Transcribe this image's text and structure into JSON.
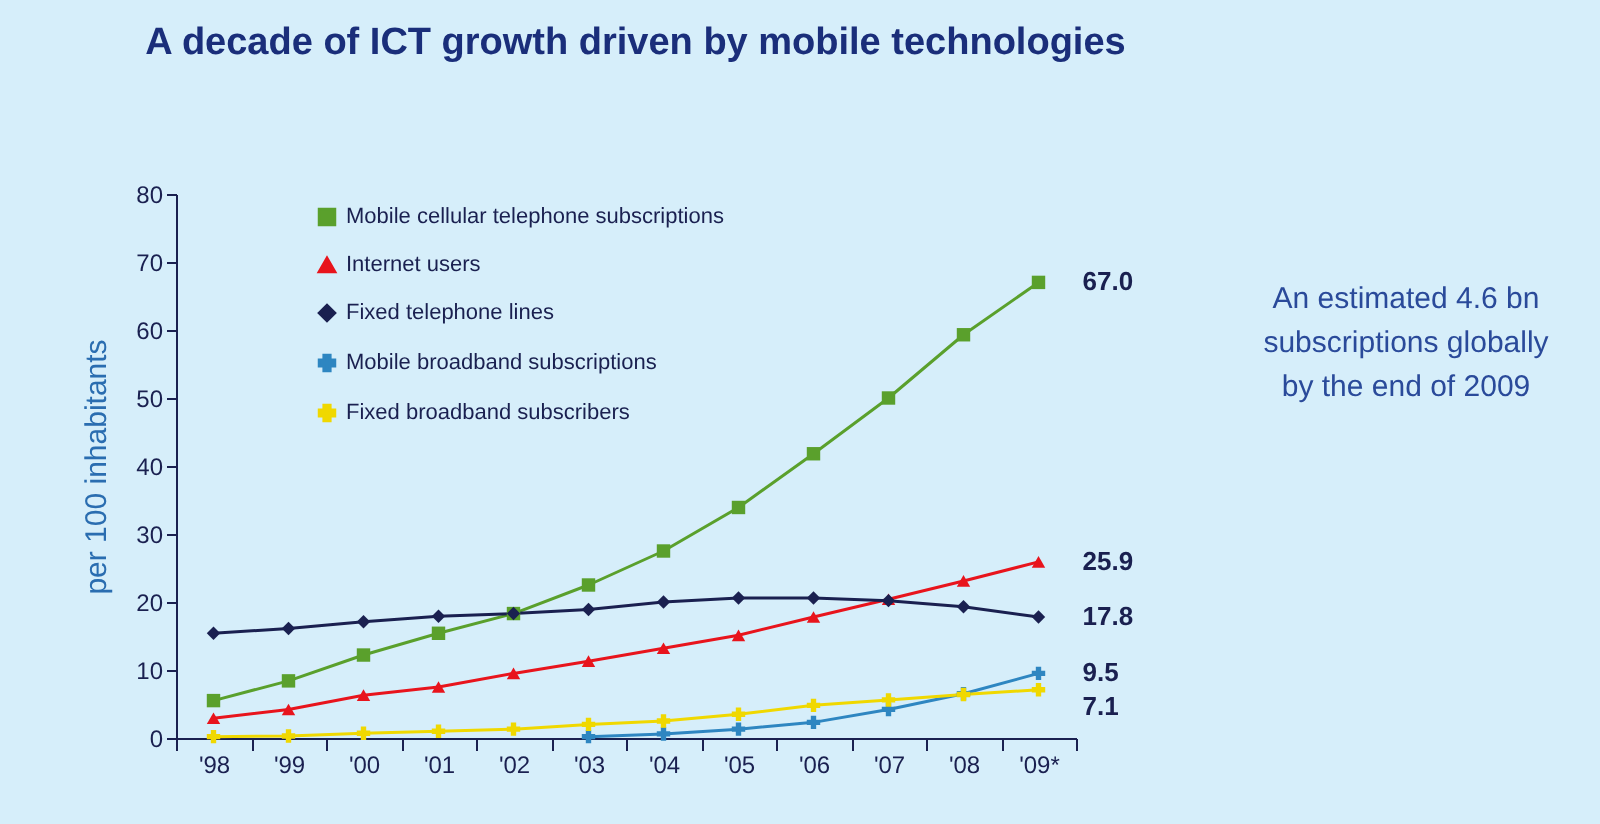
{
  "chart_data": {
    "type": "line",
    "title": "A decade of ICT growth driven by mobile technologies",
    "ylabel": "per 100 inhabitants",
    "categories": [
      "'98",
      "'99",
      "'00",
      "'01",
      "'02",
      "'03",
      "'04",
      "'05",
      "'06",
      "'07",
      "'08",
      "'09*"
    ],
    "ylim": [
      0,
      80
    ],
    "yticks": [
      0,
      10,
      20,
      30,
      40,
      50,
      60,
      70,
      80
    ],
    "grid": false,
    "legend": "top left",
    "series": [
      {
        "name": "Mobile cellular telephone subscriptions",
        "color": "#5aa02c",
        "marker": "square",
        "values": [
          5.5,
          8.4,
          12.2,
          15.4,
          18.3,
          22.5,
          27.5,
          33.9,
          41.8,
          50.0,
          59.3,
          67.0
        ],
        "value_labels": [
          null,
          null,
          null,
          null,
          null,
          null,
          null,
          null,
          null,
          null,
          null,
          "67.0"
        ]
      },
      {
        "name": "Internet users",
        "color": "#e8141c",
        "marker": "triangle",
        "values": [
          2.9,
          4.2,
          6.3,
          7.5,
          9.5,
          11.3,
          13.2,
          15.1,
          17.8,
          20.4,
          23.1,
          25.9
        ],
        "value_labels": [
          null,
          null,
          null,
          null,
          null,
          null,
          null,
          null,
          null,
          null,
          null,
          "25.9"
        ]
      },
      {
        "name": "Fixed telephone lines",
        "color": "#1a2050",
        "marker": "diamond",
        "values": [
          15.4,
          16.1,
          17.1,
          17.9,
          18.3,
          18.9,
          20.0,
          20.6,
          20.6,
          20.2,
          19.3,
          17.8
        ],
        "value_labels": [
          null,
          null,
          null,
          null,
          null,
          null,
          null,
          null,
          null,
          null,
          null,
          "17.8"
        ]
      },
      {
        "name": "Mobile broadband subscriptions",
        "color": "#2e86c1",
        "marker": "cross",
        "values": [
          null,
          null,
          null,
          null,
          null,
          0.2,
          0.6,
          1.3,
          2.3,
          4.2,
          6.5,
          9.5
        ],
        "value_labels": [
          null,
          null,
          null,
          null,
          null,
          null,
          null,
          null,
          null,
          null,
          null,
          "9.5"
        ]
      },
      {
        "name": "Fixed broadband subscribers",
        "color": "#f0d800",
        "marker": "cross",
        "values": [
          0.2,
          0.3,
          0.7,
          1.0,
          1.3,
          2.0,
          2.5,
          3.5,
          4.8,
          5.6,
          6.4,
          7.1
        ],
        "value_labels": [
          null,
          null,
          null,
          null,
          null,
          null,
          null,
          null,
          null,
          null,
          null,
          "7.1"
        ]
      }
    ],
    "annotations": [
      "An estimated 4.6 bn subscriptions globally by the end of 2009"
    ]
  }
}
